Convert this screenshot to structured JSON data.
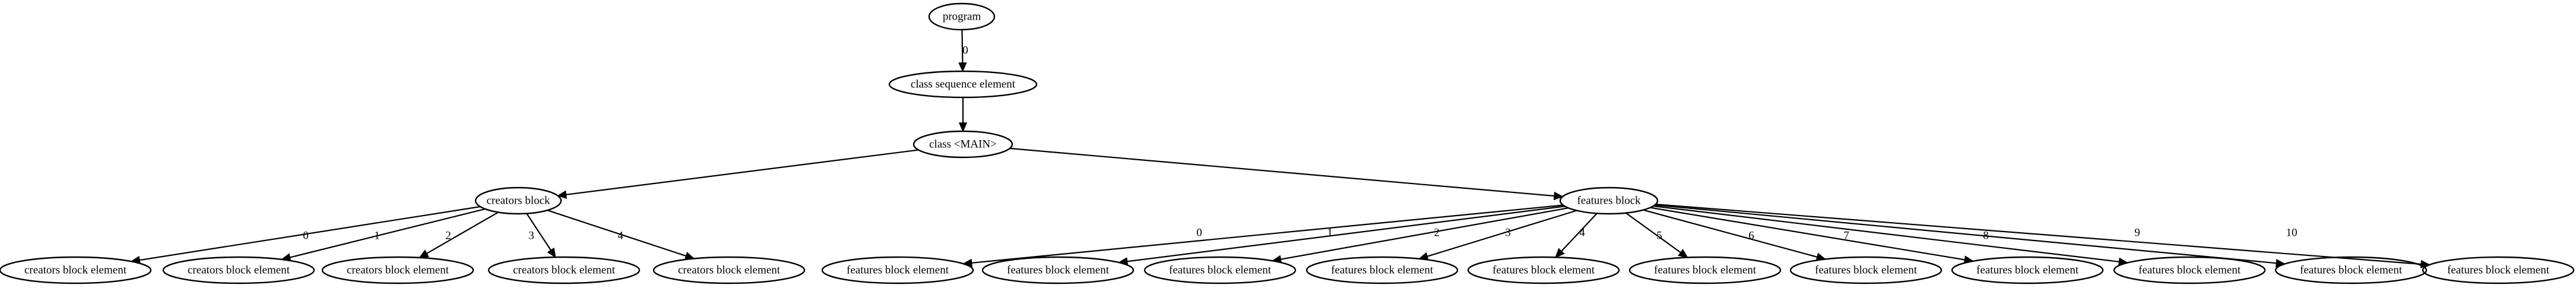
{
  "nodes": [
    {
      "id": "program",
      "label": "program"
    },
    {
      "id": "cse",
      "label": "class sequence element"
    },
    {
      "id": "main",
      "label": "class <MAIN>"
    },
    {
      "id": "cb",
      "label": "creators block"
    },
    {
      "id": "fb",
      "label": "features block"
    },
    {
      "id": "cbe0",
      "label": "creators block element"
    },
    {
      "id": "cbe1",
      "label": "creators block element"
    },
    {
      "id": "cbe2",
      "label": "creators block element"
    },
    {
      "id": "cbe3",
      "label": "creators block element"
    },
    {
      "id": "cbe4",
      "label": "creators block element"
    },
    {
      "id": "fbe0",
      "label": "features block element"
    },
    {
      "id": "fbe1",
      "label": "features block element"
    },
    {
      "id": "fbe2",
      "label": "features block element"
    },
    {
      "id": "fbe3",
      "label": "features block element"
    },
    {
      "id": "fbe4",
      "label": "features block element"
    },
    {
      "id": "fbe5",
      "label": "features block element"
    },
    {
      "id": "fbe6",
      "label": "features block element"
    },
    {
      "id": "fbe7",
      "label": "features block element"
    },
    {
      "id": "fbe8",
      "label": "features block element"
    },
    {
      "id": "fbe9",
      "label": "features block element"
    },
    {
      "id": "fbe10",
      "label": "features block element"
    }
  ],
  "edges": [
    {
      "from": "program",
      "to": "cse",
      "label": "0"
    },
    {
      "from": "cse",
      "to": "main",
      "label": ""
    },
    {
      "from": "main",
      "to": "cb",
      "label": ""
    },
    {
      "from": "main",
      "to": "fb",
      "label": ""
    },
    {
      "from": "cb",
      "to": "cbe0",
      "label": "0"
    },
    {
      "from": "cb",
      "to": "cbe1",
      "label": "1"
    },
    {
      "from": "cb",
      "to": "cbe2",
      "label": "2"
    },
    {
      "from": "cb",
      "to": "cbe3",
      "label": "3"
    },
    {
      "from": "cb",
      "to": "cbe4",
      "label": "4"
    },
    {
      "from": "fb",
      "to": "fbe0",
      "label": "0"
    },
    {
      "from": "fb",
      "to": "fbe1",
      "label": "1"
    },
    {
      "from": "fb",
      "to": "fbe2",
      "label": "2"
    },
    {
      "from": "fb",
      "to": "fbe3",
      "label": "3"
    },
    {
      "from": "fb",
      "to": "fbe4",
      "label": "4"
    },
    {
      "from": "fb",
      "to": "fbe5",
      "label": "5"
    },
    {
      "from": "fb",
      "to": "fbe6",
      "label": "6"
    },
    {
      "from": "fb",
      "to": "fbe7",
      "label": "7"
    },
    {
      "from": "fb",
      "to": "fbe8",
      "label": "8"
    },
    {
      "from": "fb",
      "to": "fbe9",
      "label": "9"
    },
    {
      "from": "fb",
      "to": "fbe10",
      "label": "10"
    }
  ]
}
